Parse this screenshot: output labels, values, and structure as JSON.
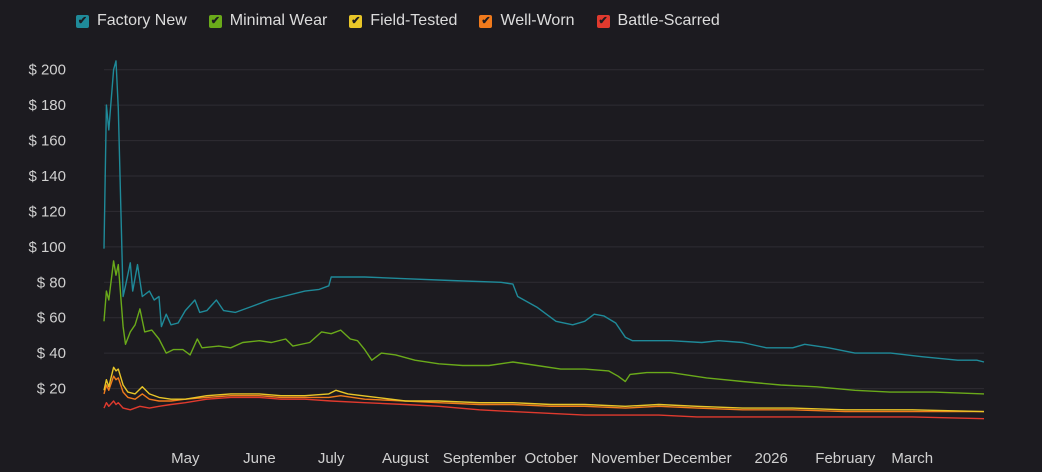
{
  "chart_data": {
    "type": "line",
    "legend_position": "top-left",
    "grid": true,
    "ylim": [
      0,
      210
    ],
    "yticks": [
      20,
      40,
      60,
      80,
      100,
      120,
      140,
      160,
      180,
      200
    ],
    "ytick_prefix": "$ ",
    "xlim": [
      "2025-03-28",
      "2026-03-31"
    ],
    "xticks": [
      {
        "label": "May",
        "date": "2025-05-01"
      },
      {
        "label": "June",
        "date": "2025-06-01"
      },
      {
        "label": "July",
        "date": "2025-07-01"
      },
      {
        "label": "August",
        "date": "2025-08-01"
      },
      {
        "label": "September",
        "date": "2025-09-01"
      },
      {
        "label": "October",
        "date": "2025-10-01"
      },
      {
        "label": "November",
        "date": "2025-11-01"
      },
      {
        "label": "December",
        "date": "2025-12-01"
      },
      {
        "label": "2026",
        "date": "2026-01-01"
      },
      {
        "label": "February",
        "date": "2026-02-01"
      },
      {
        "label": "March",
        "date": "2026-03-01"
      }
    ],
    "series": [
      {
        "name": "Factory New",
        "color": "#1f8a99",
        "points": [
          [
            "2025-03-28",
            99
          ],
          [
            "2025-03-29",
            180
          ],
          [
            "2025-03-30",
            166
          ],
          [
            "2025-04-01",
            200
          ],
          [
            "2025-04-02",
            205
          ],
          [
            "2025-04-03",
            178
          ],
          [
            "2025-04-05",
            72
          ],
          [
            "2025-04-06",
            78
          ],
          [
            "2025-04-08",
            91
          ],
          [
            "2025-04-09",
            75
          ],
          [
            "2025-04-11",
            90
          ],
          [
            "2025-04-13",
            72
          ],
          [
            "2025-04-16",
            75
          ],
          [
            "2025-04-18",
            70
          ],
          [
            "2025-04-20",
            72
          ],
          [
            "2025-04-21",
            55
          ],
          [
            "2025-04-23",
            62
          ],
          [
            "2025-04-25",
            56
          ],
          [
            "2025-04-28",
            57
          ],
          [
            "2025-05-01",
            64
          ],
          [
            "2025-05-05",
            70
          ],
          [
            "2025-05-07",
            63
          ],
          [
            "2025-05-10",
            64
          ],
          [
            "2025-05-14",
            70
          ],
          [
            "2025-05-17",
            64
          ],
          [
            "2025-05-22",
            63
          ],
          [
            "2025-05-28",
            66
          ],
          [
            "2025-06-05",
            70
          ],
          [
            "2025-06-20",
            75
          ],
          [
            "2025-06-26",
            76
          ],
          [
            "2025-06-30",
            78
          ],
          [
            "2025-07-01",
            83
          ],
          [
            "2025-07-15",
            83
          ],
          [
            "2025-08-01",
            82
          ],
          [
            "2025-08-20",
            81
          ],
          [
            "2025-09-10",
            80
          ],
          [
            "2025-09-15",
            79
          ],
          [
            "2025-09-17",
            72
          ],
          [
            "2025-09-25",
            66
          ],
          [
            "2025-10-03",
            58
          ],
          [
            "2025-10-10",
            56
          ],
          [
            "2025-10-15",
            58
          ],
          [
            "2025-10-19",
            62
          ],
          [
            "2025-10-23",
            61
          ],
          [
            "2025-10-28",
            57
          ],
          [
            "2025-11-01",
            49
          ],
          [
            "2025-11-04",
            47
          ],
          [
            "2025-11-20",
            47
          ],
          [
            "2025-12-03",
            46
          ],
          [
            "2025-12-10",
            47
          ],
          [
            "2025-12-20",
            46
          ],
          [
            "2025-12-30",
            43
          ],
          [
            "2026-01-10",
            43
          ],
          [
            "2026-01-15",
            45
          ],
          [
            "2026-01-25",
            43
          ],
          [
            "2026-02-05",
            40
          ],
          [
            "2026-02-20",
            40
          ],
          [
            "2026-03-05",
            38
          ],
          [
            "2026-03-20",
            36
          ],
          [
            "2026-03-28",
            36
          ],
          [
            "2026-03-31",
            35
          ]
        ]
      },
      {
        "name": "Minimal Wear",
        "color": "#6aaa1a",
        "points": [
          [
            "2025-03-28",
            58
          ],
          [
            "2025-03-29",
            75
          ],
          [
            "2025-03-30",
            70
          ],
          [
            "2025-04-01",
            92
          ],
          [
            "2025-04-02",
            84
          ],
          [
            "2025-04-03",
            90
          ],
          [
            "2025-04-05",
            55
          ],
          [
            "2025-04-06",
            45
          ],
          [
            "2025-04-08",
            52
          ],
          [
            "2025-04-10",
            56
          ],
          [
            "2025-04-12",
            65
          ],
          [
            "2025-04-14",
            52
          ],
          [
            "2025-04-17",
            53
          ],
          [
            "2025-04-20",
            48
          ],
          [
            "2025-04-23",
            40
          ],
          [
            "2025-04-26",
            42
          ],
          [
            "2025-04-30",
            42
          ],
          [
            "2025-05-03",
            39
          ],
          [
            "2025-05-06",
            48
          ],
          [
            "2025-05-08",
            43
          ],
          [
            "2025-05-15",
            44
          ],
          [
            "2025-05-20",
            43
          ],
          [
            "2025-05-25",
            46
          ],
          [
            "2025-06-01",
            47
          ],
          [
            "2025-06-06",
            46
          ],
          [
            "2025-06-12",
            48
          ],
          [
            "2025-06-15",
            44
          ],
          [
            "2025-06-22",
            46
          ],
          [
            "2025-06-27",
            52
          ],
          [
            "2025-07-01",
            51
          ],
          [
            "2025-07-05",
            53
          ],
          [
            "2025-07-09",
            48
          ],
          [
            "2025-07-12",
            47
          ],
          [
            "2025-07-15",
            42
          ],
          [
            "2025-07-18",
            36
          ],
          [
            "2025-07-22",
            40
          ],
          [
            "2025-07-28",
            39
          ],
          [
            "2025-08-05",
            36
          ],
          [
            "2025-08-15",
            34
          ],
          [
            "2025-08-25",
            33
          ],
          [
            "2025-09-05",
            33
          ],
          [
            "2025-09-15",
            35
          ],
          [
            "2025-09-25",
            33
          ],
          [
            "2025-10-05",
            31
          ],
          [
            "2025-10-15",
            31
          ],
          [
            "2025-10-25",
            30
          ],
          [
            "2025-10-29",
            27
          ],
          [
            "2025-11-01",
            24
          ],
          [
            "2025-11-03",
            28
          ],
          [
            "2025-11-10",
            29
          ],
          [
            "2025-11-20",
            29
          ],
          [
            "2025-12-05",
            26
          ],
          [
            "2025-12-20",
            24
          ],
          [
            "2026-01-05",
            22
          ],
          [
            "2026-01-20",
            21
          ],
          [
            "2026-02-05",
            19
          ],
          [
            "2026-02-20",
            18
          ],
          [
            "2026-03-10",
            18
          ],
          [
            "2026-03-31",
            17
          ]
        ]
      },
      {
        "name": "Field-Tested",
        "color": "#e8c628",
        "points": [
          [
            "2025-03-28",
            19
          ],
          [
            "2025-03-29",
            25
          ],
          [
            "2025-03-30",
            21
          ],
          [
            "2025-04-01",
            32
          ],
          [
            "2025-04-02",
            30
          ],
          [
            "2025-04-03",
            31
          ],
          [
            "2025-04-05",
            22
          ],
          [
            "2025-04-07",
            18
          ],
          [
            "2025-04-10",
            17
          ],
          [
            "2025-04-13",
            21
          ],
          [
            "2025-04-16",
            17
          ],
          [
            "2025-04-20",
            15
          ],
          [
            "2025-04-25",
            14
          ],
          [
            "2025-05-01",
            14
          ],
          [
            "2025-05-10",
            16
          ],
          [
            "2025-05-20",
            17
          ],
          [
            "2025-06-01",
            17
          ],
          [
            "2025-06-10",
            16
          ],
          [
            "2025-06-20",
            16
          ],
          [
            "2025-06-30",
            17
          ],
          [
            "2025-07-03",
            19
          ],
          [
            "2025-07-08",
            17
          ],
          [
            "2025-07-20",
            15
          ],
          [
            "2025-08-01",
            13
          ],
          [
            "2025-08-15",
            13
          ],
          [
            "2025-09-01",
            12
          ],
          [
            "2025-09-15",
            12
          ],
          [
            "2025-10-01",
            11
          ],
          [
            "2025-10-15",
            11
          ],
          [
            "2025-11-01",
            10
          ],
          [
            "2025-11-15",
            11
          ],
          [
            "2025-12-01",
            10
          ],
          [
            "2025-12-20",
            9
          ],
          [
            "2026-01-10",
            9
          ],
          [
            "2026-02-01",
            8
          ],
          [
            "2026-03-01",
            8
          ],
          [
            "2026-03-31",
            7
          ]
        ]
      },
      {
        "name": "Well-Worn",
        "color": "#f07a1c",
        "points": [
          [
            "2025-03-28",
            17
          ],
          [
            "2025-03-29",
            22
          ],
          [
            "2025-03-30",
            19
          ],
          [
            "2025-04-01",
            27
          ],
          [
            "2025-04-02",
            25
          ],
          [
            "2025-04-03",
            26
          ],
          [
            "2025-04-05",
            18
          ],
          [
            "2025-04-07",
            15
          ],
          [
            "2025-04-10",
            14
          ],
          [
            "2025-04-13",
            17
          ],
          [
            "2025-04-16",
            14
          ],
          [
            "2025-04-20",
            13
          ],
          [
            "2025-04-25",
            13
          ],
          [
            "2025-05-01",
            14
          ],
          [
            "2025-05-10",
            15
          ],
          [
            "2025-05-20",
            16
          ],
          [
            "2025-06-01",
            16
          ],
          [
            "2025-06-10",
            15
          ],
          [
            "2025-06-20",
            15
          ],
          [
            "2025-06-30",
            15
          ],
          [
            "2025-07-05",
            16
          ],
          [
            "2025-07-15",
            14
          ],
          [
            "2025-08-01",
            13
          ],
          [
            "2025-08-15",
            12
          ],
          [
            "2025-09-01",
            11
          ],
          [
            "2025-09-15",
            11
          ],
          [
            "2025-10-01",
            10
          ],
          [
            "2025-10-15",
            10
          ],
          [
            "2025-11-01",
            9
          ],
          [
            "2025-11-15",
            10
          ],
          [
            "2025-12-01",
            9
          ],
          [
            "2025-12-20",
            8
          ],
          [
            "2026-01-10",
            8
          ],
          [
            "2026-02-01",
            7
          ],
          [
            "2026-03-01",
            7
          ],
          [
            "2026-03-31",
            7
          ]
        ]
      },
      {
        "name": "Battle-Scarred",
        "color": "#e03a2e",
        "points": [
          [
            "2025-03-28",
            9
          ],
          [
            "2025-03-29",
            12
          ],
          [
            "2025-03-30",
            10
          ],
          [
            "2025-04-01",
            13
          ],
          [
            "2025-04-02",
            11
          ],
          [
            "2025-04-03",
            12
          ],
          [
            "2025-04-05",
            9
          ],
          [
            "2025-04-08",
            8
          ],
          [
            "2025-04-12",
            10
          ],
          [
            "2025-04-16",
            9
          ],
          [
            "2025-04-20",
            10
          ],
          [
            "2025-04-25",
            11
          ],
          [
            "2025-05-01",
            12
          ],
          [
            "2025-05-10",
            14
          ],
          [
            "2025-05-20",
            15
          ],
          [
            "2025-06-01",
            15
          ],
          [
            "2025-06-10",
            14
          ],
          [
            "2025-06-20",
            14
          ],
          [
            "2025-07-01",
            13
          ],
          [
            "2025-07-15",
            12
          ],
          [
            "2025-08-01",
            11
          ],
          [
            "2025-08-15",
            10
          ],
          [
            "2025-09-01",
            8
          ],
          [
            "2025-09-15",
            7
          ],
          [
            "2025-10-01",
            6
          ],
          [
            "2025-10-15",
            5
          ],
          [
            "2025-11-01",
            5
          ],
          [
            "2025-11-15",
            5
          ],
          [
            "2025-12-01",
            4
          ],
          [
            "2025-12-20",
            4
          ],
          [
            "2026-01-10",
            4
          ],
          [
            "2026-02-01",
            4
          ],
          [
            "2026-03-01",
            4
          ],
          [
            "2026-03-31",
            3
          ]
        ]
      }
    ]
  }
}
